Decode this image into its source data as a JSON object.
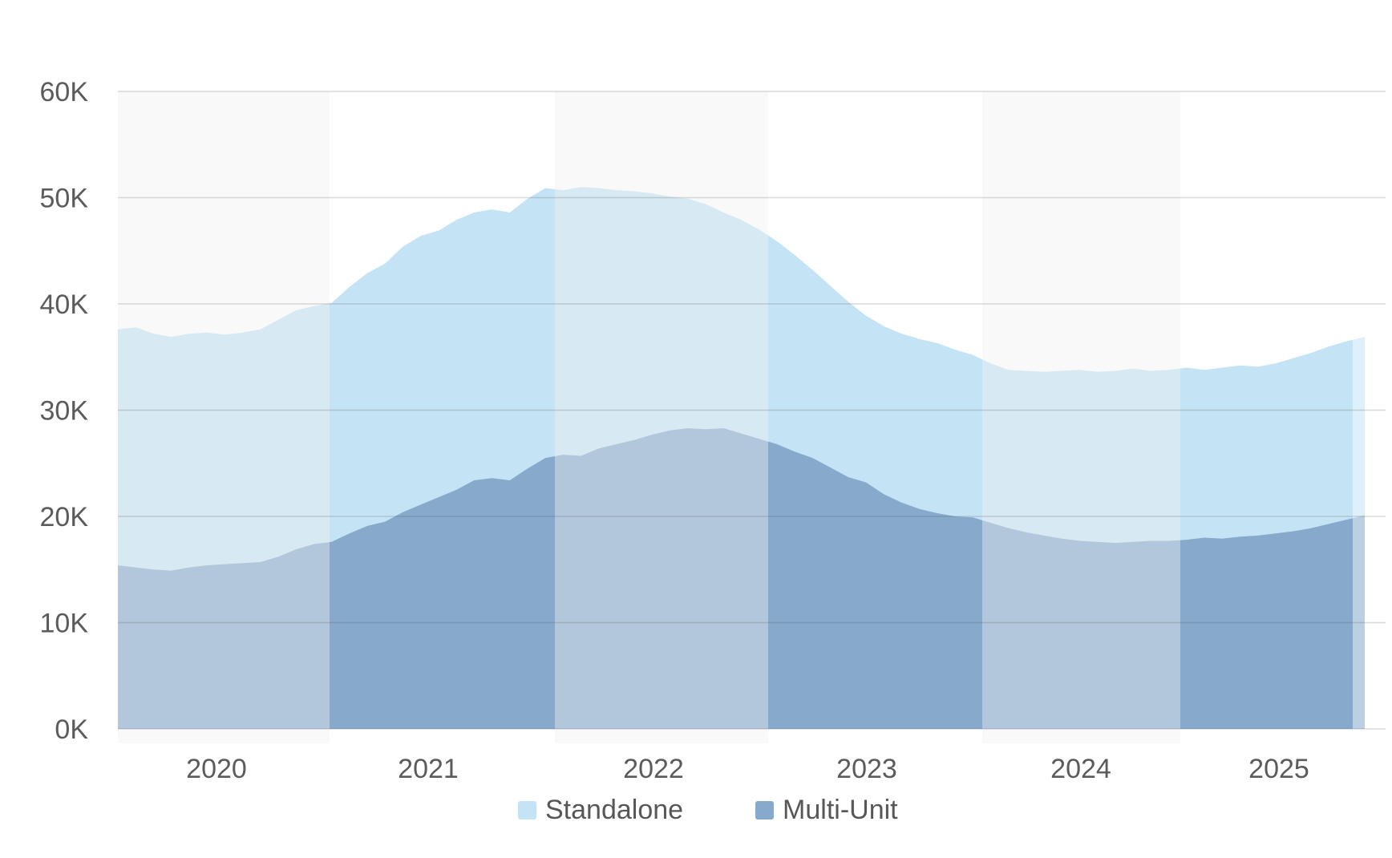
{
  "page": {
    "background": "#ffffff",
    "title": ""
  },
  "y_axis": {
    "tick_labels": [
      "0K",
      "10K",
      "20K",
      "30K",
      "40K",
      "50K",
      "60K"
    ]
  },
  "x_axis": {
    "tick_labels": [
      "2020",
      "2021",
      "2022",
      "2023",
      "2024",
      "2025"
    ]
  },
  "legend": {
    "items": [
      {
        "label": "Standalone",
        "color": "#c4e3f4"
      },
      {
        "label": "Multi-Unit",
        "color": "#86a9cc"
      }
    ]
  },
  "colors": {
    "standalone_area": "#c4e3f4",
    "multi_unit_area": "#86a9cc",
    "year_band_overlay": "rgba(240,240,240,0.42)",
    "last_segment_fade_overlay": "rgba(255,255,255,0.45)",
    "gridline": "rgba(85,85,85,0.22)",
    "axis_text": "#5b5b5b"
  },
  "chart_data": {
    "type": "area",
    "mode": "overlapping",
    "title": "",
    "xlabel": "",
    "ylabel": "",
    "values_unit": "thousands",
    "ylim_k": [
      0,
      60
    ],
    "y_tick_step_k": 10,
    "grid": true,
    "legend_position": "bottom",
    "x_year_ticks": [
      "2020",
      "2021",
      "2022",
      "2023",
      "2024",
      "2025"
    ],
    "shaded_year_bands": [
      "2020",
      "2022",
      "2024"
    ],
    "last_segment_faded": true,
    "x": [
      "2020-01",
      "2020-02",
      "2020-03",
      "2020-04",
      "2020-05",
      "2020-06",
      "2020-07",
      "2020-08",
      "2020-09",
      "2020-10",
      "2020-11",
      "2020-12",
      "2021-01",
      "2021-02",
      "2021-03",
      "2021-04",
      "2021-05",
      "2021-06",
      "2021-07",
      "2021-08",
      "2021-09",
      "2021-10",
      "2021-11",
      "2021-12",
      "2022-01",
      "2022-02",
      "2022-03",
      "2022-04",
      "2022-05",
      "2022-06",
      "2022-07",
      "2022-08",
      "2022-09",
      "2022-10",
      "2022-11",
      "2022-12",
      "2023-01",
      "2023-02",
      "2023-03",
      "2023-04",
      "2023-05",
      "2023-06",
      "2023-07",
      "2023-08",
      "2023-09",
      "2023-10",
      "2023-11",
      "2023-12",
      "2024-01",
      "2024-02",
      "2024-03",
      "2024-04",
      "2024-05",
      "2024-06",
      "2024-07",
      "2024-08",
      "2024-09",
      "2024-10",
      "2024-11",
      "2024-12",
      "2025-01",
      "2025-02",
      "2025-03",
      "2025-04",
      "2025-05",
      "2025-06",
      "2025-07",
      "2025-08",
      "2025-09",
      "2025-10",
      "2025-11"
    ],
    "series": [
      {
        "name": "Standalone",
        "color": "#c4e3f4",
        "values_k": [
          37.6,
          37.8,
          37.2,
          36.9,
          37.2,
          37.3,
          37.1,
          37.3,
          37.6,
          38.5,
          39.4,
          39.8,
          40.1,
          41.6,
          42.9,
          43.8,
          45.4,
          46.4,
          46.9,
          47.9,
          48.6,
          48.9,
          48.6,
          49.9,
          50.9,
          50.7,
          51.0,
          50.9,
          50.7,
          50.6,
          50.4,
          50.1,
          49.9,
          49.4,
          48.6,
          47.9,
          47.0,
          45.9,
          44.6,
          43.2,
          41.7,
          40.2,
          38.9,
          37.9,
          37.2,
          36.7,
          36.3,
          35.7,
          35.2,
          34.4,
          33.8,
          33.7,
          33.6,
          33.7,
          33.8,
          33.6,
          33.7,
          33.9,
          33.7,
          33.8,
          34.0,
          33.8,
          34.0,
          34.2,
          34.1,
          34.4,
          34.9,
          35.4,
          36.0,
          36.5,
          36.9
        ]
      },
      {
        "name": "Multi-Unit",
        "color": "#86a9cc",
        "values_k": [
          15.4,
          15.2,
          15.0,
          14.9,
          15.2,
          15.4,
          15.5,
          15.6,
          15.7,
          16.2,
          16.9,
          17.4,
          17.6,
          18.4,
          19.1,
          19.5,
          20.4,
          21.1,
          21.8,
          22.5,
          23.4,
          23.6,
          23.4,
          24.5,
          25.5,
          25.8,
          25.7,
          26.4,
          26.8,
          27.2,
          27.7,
          28.1,
          28.3,
          28.2,
          28.3,
          27.8,
          27.3,
          26.8,
          26.1,
          25.5,
          24.6,
          23.7,
          23.2,
          22.1,
          21.3,
          20.7,
          20.3,
          20.0,
          19.9,
          19.4,
          18.9,
          18.5,
          18.2,
          17.9,
          17.7,
          17.6,
          17.5,
          17.6,
          17.7,
          17.7,
          17.8,
          18.0,
          17.9,
          18.1,
          18.2,
          18.4,
          18.6,
          18.9,
          19.3,
          19.7,
          20.1
        ]
      }
    ]
  }
}
